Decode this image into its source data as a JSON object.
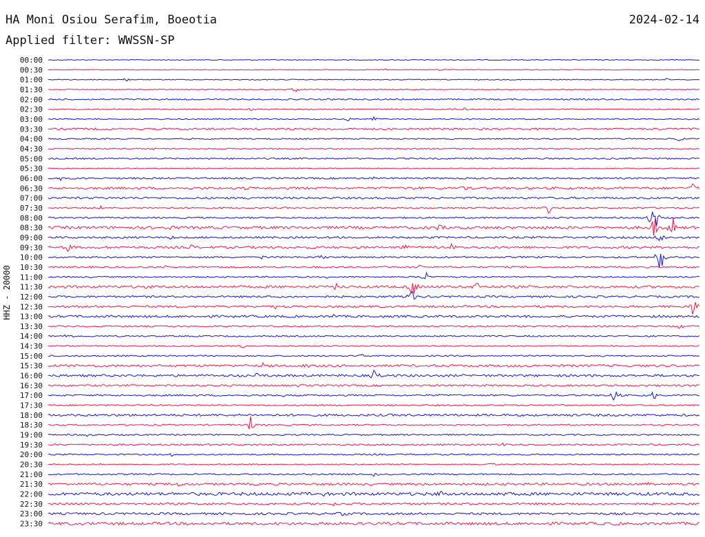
{
  "header": {
    "station": "HA Moni Osiou Serafim, Boeotia",
    "date": "2024-02-14",
    "filter": "Applied filter: WWSSN-SP"
  },
  "chart_data": {
    "type": "line",
    "ylabel": "HHZ - 20000",
    "colors": {
      "even": "#1010cc",
      "odd": "#ee1144"
    },
    "rows": [
      {
        "label": "00:00",
        "noise": 0.6,
        "events": []
      },
      {
        "label": "00:30",
        "noise": 0.5,
        "events": [
          {
            "pos": 0.52,
            "amp": 2
          },
          {
            "pos": 0.6,
            "amp": 2
          }
        ]
      },
      {
        "label": "01:00",
        "noise": 0.6,
        "events": [
          {
            "pos": 0.12,
            "amp": 2.5
          },
          {
            "pos": 0.95,
            "amp": 2
          }
        ]
      },
      {
        "label": "01:30",
        "noise": 0.6,
        "events": [
          {
            "pos": 0.38,
            "amp": 6
          },
          {
            "pos": 0.45,
            "amp": 3
          }
        ]
      },
      {
        "label": "02:00",
        "noise": 1.0,
        "events": []
      },
      {
        "label": "02:30",
        "noise": 0.8,
        "events": [
          {
            "pos": 0.31,
            "amp": 2
          },
          {
            "pos": 0.4,
            "amp": 2
          },
          {
            "pos": 0.64,
            "amp": 3
          }
        ]
      },
      {
        "label": "03:00",
        "noise": 0.8,
        "events": [
          {
            "pos": 0.46,
            "amp": 4
          },
          {
            "pos": 0.5,
            "amp": 4
          }
        ]
      },
      {
        "label": "03:30",
        "noise": 1.4,
        "events": []
      },
      {
        "label": "04:00",
        "noise": 0.9,
        "events": [
          {
            "pos": 0.97,
            "amp": 7
          },
          {
            "pos": 0.83,
            "amp": 2
          }
        ]
      },
      {
        "label": "04:30",
        "noise": 0.8,
        "events": [
          {
            "pos": 0.16,
            "amp": 3
          },
          {
            "pos": 0.9,
            "amp": 3
          }
        ]
      },
      {
        "label": "05:00",
        "noise": 1.1,
        "events": []
      },
      {
        "label": "05:30",
        "noise": 0.7,
        "events": []
      },
      {
        "label": "06:00",
        "noise": 1.2,
        "events": [
          {
            "pos": 0.02,
            "amp": 4
          },
          {
            "pos": 0.5,
            "amp": 2
          }
        ]
      },
      {
        "label": "06:30",
        "noise": 1.6,
        "events": [
          {
            "pos": 0.3,
            "amp": 4
          },
          {
            "pos": 0.56,
            "amp": 6
          },
          {
            "pos": 0.64,
            "amp": 4
          },
          {
            "pos": 0.99,
            "amp": 10
          }
        ]
      },
      {
        "label": "07:00",
        "noise": 1.4,
        "events": [
          {
            "pos": 0.06,
            "amp": 2
          },
          {
            "pos": 0.31,
            "amp": 2
          }
        ]
      },
      {
        "label": "07:30",
        "noise": 1.1,
        "events": [
          {
            "pos": 0.08,
            "amp": 3
          },
          {
            "pos": 0.77,
            "amp": 12
          }
        ]
      },
      {
        "label": "08:00",
        "noise": 1.1,
        "events": [
          {
            "pos": 0.93,
            "amp": 30
          }
        ]
      },
      {
        "label": "08:30",
        "noise": 2.0,
        "events": [
          {
            "pos": 0.19,
            "amp": 4
          },
          {
            "pos": 0.6,
            "amp": 6
          },
          {
            "pos": 0.93,
            "amp": 22
          },
          {
            "pos": 0.96,
            "amp": 18
          }
        ]
      },
      {
        "label": "09:00",
        "noise": 1.4,
        "events": [
          {
            "pos": 0.19,
            "amp": 4
          },
          {
            "pos": 0.45,
            "amp": 5
          },
          {
            "pos": 0.94,
            "amp": 12
          }
        ]
      },
      {
        "label": "09:30",
        "noise": 1.6,
        "events": [
          {
            "pos": 0.03,
            "amp": 12
          },
          {
            "pos": 0.22,
            "amp": 4
          },
          {
            "pos": 0.55,
            "amp": 5
          },
          {
            "pos": 0.62,
            "amp": 5
          }
        ]
      },
      {
        "label": "10:00",
        "noise": 1.2,
        "events": [
          {
            "pos": 0.33,
            "amp": 4
          },
          {
            "pos": 0.42,
            "amp": 4
          },
          {
            "pos": 0.94,
            "amp": 25
          }
        ]
      },
      {
        "label": "10:30",
        "noise": 1.2,
        "events": [
          {
            "pos": 0.18,
            "amp": 2
          },
          {
            "pos": 0.57,
            "amp": 4
          }
        ]
      },
      {
        "label": "11:00",
        "noise": 1.0,
        "events": [
          {
            "pos": 0.43,
            "amp": 3
          },
          {
            "pos": 0.58,
            "amp": 8
          }
        ]
      },
      {
        "label": "11:30",
        "noise": 1.8,
        "events": [
          {
            "pos": 0.15,
            "amp": 4
          },
          {
            "pos": 0.44,
            "amp": 6
          },
          {
            "pos": 0.56,
            "amp": 18
          },
          {
            "pos": 0.66,
            "amp": 10
          }
        ]
      },
      {
        "label": "12:00",
        "noise": 1.4,
        "events": [
          {
            "pos": 0.34,
            "amp": 3
          },
          {
            "pos": 0.56,
            "amp": 12
          },
          {
            "pos": 0.77,
            "amp": 3
          }
        ]
      },
      {
        "label": "12:30",
        "noise": 1.5,
        "events": [
          {
            "pos": 0.35,
            "amp": 3
          },
          {
            "pos": 0.99,
            "amp": 16
          }
        ]
      },
      {
        "label": "13:00",
        "noise": 1.6,
        "events": [
          {
            "pos": 0.44,
            "amp": 4
          },
          {
            "pos": 0.75,
            "amp": 3
          }
        ]
      },
      {
        "label": "13:30",
        "noise": 1.1,
        "events": [
          {
            "pos": 0.97,
            "amp": 4
          }
        ]
      },
      {
        "label": "14:00",
        "noise": 1.0,
        "events": [
          {
            "pos": 0.03,
            "amp": 4
          },
          {
            "pos": 0.85,
            "amp": 2
          }
        ]
      },
      {
        "label": "14:30",
        "noise": 0.9,
        "events": [
          {
            "pos": 0.3,
            "amp": 7
          }
        ]
      },
      {
        "label": "15:00",
        "noise": 1.0,
        "events": [
          {
            "pos": 0.48,
            "amp": 4
          }
        ]
      },
      {
        "label": "15:30",
        "noise": 1.7,
        "events": [
          {
            "pos": 0.33,
            "amp": 4
          },
          {
            "pos": 0.4,
            "amp": 4
          }
        ]
      },
      {
        "label": "16:00",
        "noise": 1.7,
        "events": [
          {
            "pos": 0.32,
            "amp": 5
          },
          {
            "pos": 0.5,
            "amp": 10
          }
        ]
      },
      {
        "label": "16:30",
        "noise": 1.3,
        "events": [
          {
            "pos": 0.16,
            "amp": 3
          },
          {
            "pos": 0.38,
            "amp": 3
          }
        ]
      },
      {
        "label": "17:00",
        "noise": 1.2,
        "events": [
          {
            "pos": 0.36,
            "amp": 3
          },
          {
            "pos": 0.87,
            "amp": 12
          },
          {
            "pos": 0.93,
            "amp": 9
          }
        ]
      },
      {
        "label": "17:30",
        "noise": 1.0,
        "events": [
          {
            "pos": 0.53,
            "amp": 2
          }
        ]
      },
      {
        "label": "18:00",
        "noise": 1.6,
        "events": []
      },
      {
        "label": "18:30",
        "noise": 1.1,
        "events": [
          {
            "pos": 0.31,
            "amp": 15
          }
        ]
      },
      {
        "label": "19:00",
        "noise": 1.0,
        "events": [
          {
            "pos": 0.06,
            "amp": 3
          }
        ]
      },
      {
        "label": "19:30",
        "noise": 1.2,
        "events": [
          {
            "pos": 0.7,
            "amp": 3
          }
        ]
      },
      {
        "label": "20:00",
        "noise": 1.0,
        "events": [
          {
            "pos": 0.19,
            "amp": 4
          }
        ]
      },
      {
        "label": "20:30",
        "noise": 0.9,
        "events": [
          {
            "pos": 0.68,
            "amp": 4
          }
        ]
      },
      {
        "label": "21:00",
        "noise": 1.1,
        "events": [
          {
            "pos": 0.5,
            "amp": 3
          }
        ]
      },
      {
        "label": "21:30",
        "noise": 1.6,
        "events": [
          {
            "pos": 0.2,
            "amp": 4
          },
          {
            "pos": 0.92,
            "amp": 4
          }
        ]
      },
      {
        "label": "22:00",
        "noise": 2.2,
        "events": [
          {
            "pos": 0.42,
            "amp": 4
          },
          {
            "pos": 0.6,
            "amp": 7
          },
          {
            "pos": 0.7,
            "amp": 5
          }
        ]
      },
      {
        "label": "22:30",
        "noise": 1.5,
        "events": [
          {
            "pos": 0.44,
            "amp": 3
          }
        ]
      },
      {
        "label": "23:00",
        "noise": 1.6,
        "events": [
          {
            "pos": 0.45,
            "amp": 4
          }
        ]
      },
      {
        "label": "23:30",
        "noise": 2.0,
        "events": [
          {
            "pos": 0.45,
            "amp": 5
          },
          {
            "pos": 0.86,
            "amp": 4
          }
        ]
      }
    ]
  }
}
